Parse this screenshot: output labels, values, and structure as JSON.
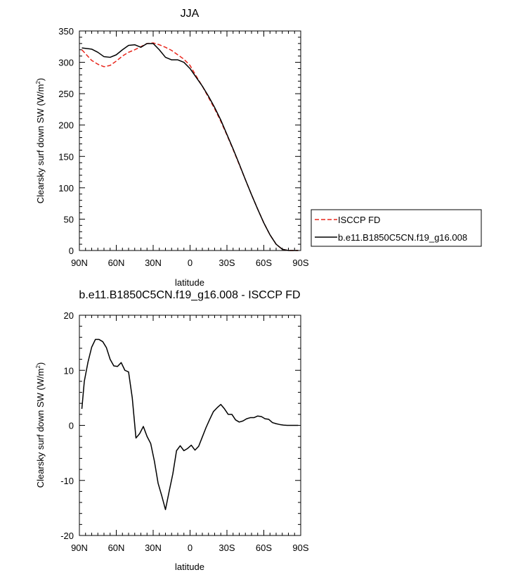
{
  "chart_data": [
    {
      "type": "line",
      "title": "JJA",
      "xlabel": "latitude",
      "ylabel": "Clearsky surf down SW (W/m",
      "ylabel_sup": "2",
      "ylabel_end": ")",
      "xlim": [
        90,
        -90
      ],
      "ylim": [
        0,
        350
      ],
      "xticks": [
        90,
        60,
        30,
        0,
        -30,
        -60,
        -90
      ],
      "xtick_labels": [
        "90N",
        "60N",
        "30N",
        "0",
        "30S",
        "60S",
        "90S"
      ],
      "yticks": [
        0,
        50,
        100,
        150,
        200,
        250,
        300,
        350
      ],
      "ytick_labels": [
        "0",
        "50",
        "100",
        "150",
        "200",
        "250",
        "300",
        "350"
      ],
      "grid": false,
      "legend_position": "right",
      "series": [
        {
          "name": "ISCCP FD",
          "color": "#e8261c",
          "dash": "dashed",
          "x": [
            88,
            80,
            75,
            70,
            65,
            60,
            55,
            50,
            45,
            40,
            35,
            30,
            25,
            20,
            15,
            10,
            5,
            0,
            -5,
            -10,
            -15,
            -20,
            -25,
            -30,
            -35,
            -40,
            -45,
            -50,
            -55,
            -60,
            -65,
            -70,
            -75,
            -80,
            -85,
            -88
          ],
          "y": [
            320,
            303,
            297,
            293,
            295,
            302,
            310,
            316,
            320,
            325,
            330,
            331,
            328,
            324,
            319,
            312,
            305,
            295,
            278,
            262,
            244,
            226,
            206,
            184,
            161,
            137,
            113,
            89,
            66,
            44,
            25,
            10,
            2,
            0,
            0,
            0
          ]
        },
        {
          "name": "b.e11.B1850C5CN.f19_g16.008",
          "color": "#000000",
          "dash": "solid",
          "x": [
            88,
            80,
            75,
            70,
            65,
            60,
            55,
            50,
            45,
            40,
            35,
            30,
            25,
            20,
            15,
            10,
            5,
            0,
            -5,
            -10,
            -15,
            -20,
            -25,
            -30,
            -35,
            -40,
            -45,
            -50,
            -55,
            -60,
            -65,
            -70,
            -75,
            -80,
            -85,
            -88
          ],
          "y": [
            323,
            321,
            316,
            309,
            308,
            312,
            320,
            327,
            328,
            324,
            330,
            330,
            320,
            308,
            304,
            304,
            300,
            290,
            276,
            262,
            246,
            228,
            208,
            185,
            162,
            138,
            113,
            89,
            66,
            44,
            25,
            10,
            2,
            0,
            0,
            0
          ]
        }
      ]
    },
    {
      "type": "line",
      "title": "b.e11.B1850C5CN.f19_g16.008 - ISCCP FD",
      "xlabel": "latitude",
      "ylabel": "Clearsky surf down SW (W/m",
      "ylabel_sup": "2",
      "ylabel_end": ")",
      "xlim": [
        90,
        -90
      ],
      "ylim": [
        -20,
        20
      ],
      "xticks": [
        90,
        60,
        30,
        0,
        -30,
        -60,
        -90
      ],
      "xtick_labels": [
        "90N",
        "60N",
        "30N",
        "0",
        "30S",
        "60S",
        "90S"
      ],
      "yticks": [
        -20,
        -10,
        0,
        10,
        20
      ],
      "ytick_labels": [
        "-20",
        "-10",
        "0",
        "10",
        "20"
      ],
      "grid": false,
      "series": [
        {
          "color": "#000000",
          "dash": "solid",
          "x": [
            88,
            86,
            83,
            80,
            77,
            74,
            71,
            68,
            65,
            62,
            59,
            56,
            53,
            50,
            47,
            44,
            41,
            38,
            35,
            32,
            29,
            26,
            23,
            20,
            17,
            14,
            11,
            8,
            5,
            2,
            -1,
            -4,
            -7,
            -10,
            -13,
            -16,
            -19,
            -22,
            -25,
            -28,
            -31,
            -34,
            -37,
            -40,
            -43,
            -46,
            -49,
            -52,
            -55,
            -58,
            -61,
            -64,
            -67,
            -70,
            -73,
            -76,
            -79,
            -82,
            -85,
            -88
          ],
          "y": [
            3,
            8,
            11.5,
            14.2,
            15.6,
            15.6,
            15.2,
            14.1,
            12,
            10.8,
            10.7,
            11.4,
            10,
            9.7,
            5,
            -2.3,
            -1.5,
            -0.2,
            -2,
            -3.3,
            -6.5,
            -10.5,
            -12.8,
            -15.3,
            -12,
            -8.8,
            -4.6,
            -3.7,
            -4.6,
            -4.2,
            -3.6,
            -4.5,
            -3.8,
            -2.1,
            -0.4,
            1.1,
            2.5,
            3.2,
            3.8,
            3,
            2,
            2,
            1,
            0.6,
            0.8,
            1.2,
            1.4,
            1.4,
            1.7,
            1.6,
            1.2,
            1.1,
            0.5,
            0.3,
            0.15,
            0.05,
            0,
            0,
            0,
            0
          ]
        }
      ]
    }
  ]
}
